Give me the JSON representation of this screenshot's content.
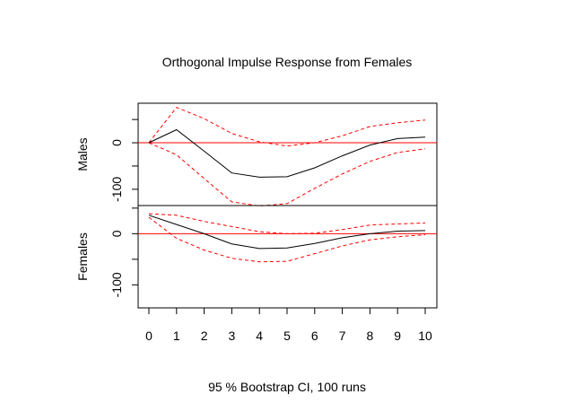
{
  "chart_data": {
    "type": "line",
    "title": "Orthogonal Impulse Response from Females",
    "xlabel": "95 % Bootstrap CI,  100 runs",
    "x": [
      0,
      1,
      2,
      3,
      4,
      5,
      6,
      7,
      8,
      9,
      10
    ],
    "x_ticks": [
      "0",
      "1",
      "2",
      "3",
      "4",
      "5",
      "6",
      "7",
      "8",
      "9",
      "10"
    ],
    "colors": {
      "response": "#000000",
      "ci": "#ff0000",
      "zero_line": "#ff0000"
    },
    "panels": [
      {
        "ylabel": "Males",
        "ylim": [
          -135,
          85
        ],
        "y_ticks": [
          {
            "value": 50,
            "label": ""
          },
          {
            "value": 0,
            "label": "0"
          },
          {
            "value": -50,
            "label": ""
          },
          {
            "value": -100,
            "label": "-100"
          }
        ],
        "response": [
          0,
          28,
          -18,
          -65,
          -74,
          -73,
          -54,
          -28,
          -5,
          9,
          12
        ],
        "upper": [
          0,
          76,
          52,
          20,
          2,
          -7,
          0,
          15,
          35,
          43,
          49
        ],
        "lower": [
          0,
          -26,
          -77,
          -127,
          -136,
          -131,
          -98,
          -67,
          -40,
          -21,
          -13
        ]
      },
      {
        "ylabel": "Females",
        "ylim": [
          -145,
          55
        ],
        "y_ticks": [
          {
            "value": 50,
            "label": ""
          },
          {
            "value": 0,
            "label": "0"
          },
          {
            "value": -50,
            "label": ""
          },
          {
            "value": -100,
            "label": "-100"
          }
        ],
        "response": [
          36,
          18,
          0,
          -20,
          -29,
          -28,
          -19,
          -8,
          0,
          5,
          6
        ],
        "upper": [
          39,
          36,
          24,
          14,
          4,
          0,
          1,
          8,
          17,
          19,
          21
        ],
        "lower": [
          32,
          -9,
          -32,
          -48,
          -55,
          -54,
          -39,
          -24,
          -12,
          -6,
          -2
        ]
      }
    ]
  }
}
